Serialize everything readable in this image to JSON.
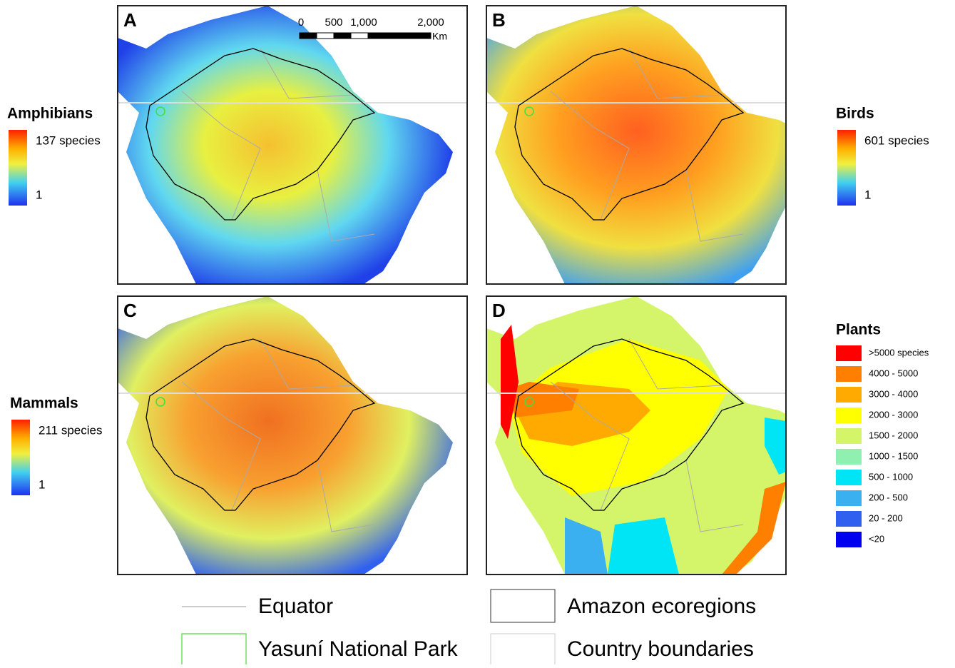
{
  "panels": [
    {
      "letter": "A",
      "legend": {
        "title": "Amphibians",
        "max": "137 species",
        "min": "1"
      }
    },
    {
      "letter": "B",
      "legend": {
        "title": "Birds",
        "max": "601 species",
        "min": "1"
      }
    },
    {
      "letter": "C",
      "legend": {
        "title": "Mammals",
        "max": "211 species",
        "min": "1"
      }
    },
    {
      "letter": "D",
      "legend": {
        "title": "Plants",
        "classes": [
          {
            "label": ">5000 species",
            "color": "#ff0000"
          },
          {
            "label": "4000 - 5000",
            "color": "#ff7f00"
          },
          {
            "label": "3000 - 4000",
            "color": "#ffaa00"
          },
          {
            "label": "2000 - 3000",
            "color": "#ffff00"
          },
          {
            "label": "1500 - 2000",
            "color": "#d4f56a"
          },
          {
            "label": "1000 - 1500",
            "color": "#8ff0b0"
          },
          {
            "label": "500 - 1000",
            "color": "#00e5f5"
          },
          {
            "label": "200 - 500",
            "color": "#3ab0f0"
          },
          {
            "label": "20 - 200",
            "color": "#3060f0"
          },
          {
            "label": "<20",
            "color": "#0000f0"
          }
        ]
      }
    }
  ],
  "scale_bar": {
    "ticks": [
      "0",
      "500",
      "1,000",
      "2,000"
    ],
    "unit": "Km"
  },
  "legend": [
    {
      "label": "Equator"
    },
    {
      "label": "Amazon ecoregions"
    },
    {
      "label": "Yasuní National Park"
    },
    {
      "label": "Country boundaries"
    }
  ]
}
